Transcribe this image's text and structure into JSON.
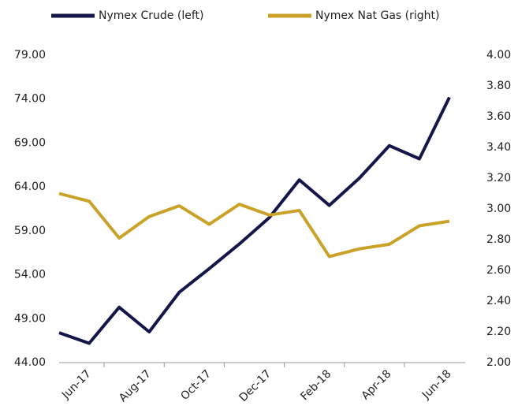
{
  "chart_data": {
    "type": "line",
    "categories": [
      null,
      "Jun-17",
      null,
      "Aug-17",
      null,
      "Oct-17",
      null,
      "Dec-17",
      null,
      "Feb-18",
      null,
      "Apr-18",
      null,
      "Jun-18"
    ],
    "series": [
      {
        "name": "Nymex Crude (left)",
        "color": "#14164a",
        "axis": "y",
        "values": [
          47.4,
          46.2,
          50.3,
          47.5,
          52.0,
          54.7,
          57.5,
          60.5,
          64.8,
          61.9,
          65.0,
          68.7,
          67.2,
          74.2
        ]
      },
      {
        "name": "Nymex Nat Gas (right)",
        "color": "#c9a227",
        "axis": "y2",
        "values": [
          3.1,
          3.05,
          2.81,
          2.95,
          3.02,
          2.9,
          3.03,
          2.96,
          2.99,
          2.69,
          2.74,
          2.77,
          2.89,
          2.92
        ]
      }
    ],
    "ylim": [
      44,
      79
    ],
    "yticks": [
      {
        "value": 44,
        "label": "44.00"
      },
      {
        "value": 49,
        "label": "49.00"
      },
      {
        "value": 54,
        "label": "54.00"
      },
      {
        "value": 59,
        "label": "59.00"
      },
      {
        "value": 64,
        "label": "64.00"
      },
      {
        "value": 69,
        "label": "69.00"
      },
      {
        "value": 74,
        "label": "74.00"
      },
      {
        "value": 79,
        "label": "79.00"
      }
    ],
    "y2lim": [
      2,
      4
    ],
    "y2ticks": [
      {
        "value": 2,
        "label": "2.00"
      },
      {
        "value": 2.2,
        "label": "2.20"
      },
      {
        "value": 2.4,
        "label": "2.40"
      },
      {
        "value": 2.6,
        "label": "2.60"
      },
      {
        "value": 2.8,
        "label": "2.80"
      },
      {
        "value": 3,
        "label": "3.00"
      },
      {
        "value": 3.2,
        "label": "3.20"
      },
      {
        "value": 3.4,
        "label": "3.40"
      },
      {
        "value": 3.6,
        "label": "3.60"
      },
      {
        "value": 3.8,
        "label": "3.80"
      },
      {
        "value": 4,
        "label": "4.00"
      }
    ],
    "legend": "top"
  }
}
